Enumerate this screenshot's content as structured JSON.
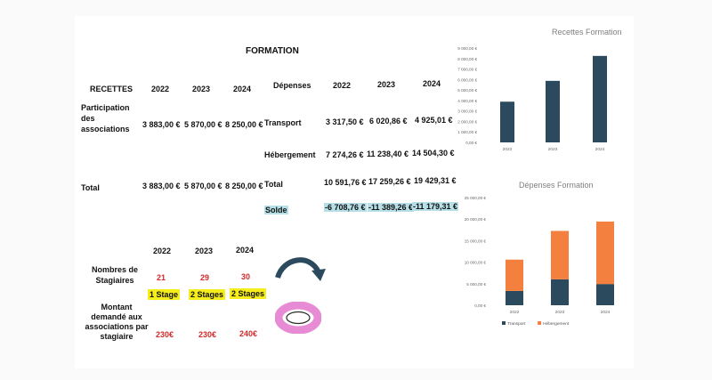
{
  "formation_title": "FORMATION",
  "recettes": {
    "header": "RECETTES",
    "years": [
      "2022",
      "2023",
      "2024"
    ],
    "participation_label": "Participation des associations",
    "participation_values": [
      "3 883,00 €",
      "5 870,00 €",
      "8 250,00 €"
    ],
    "total_label": "Total",
    "total_values": [
      "3 883,00 €",
      "5 870,00 €",
      "8 250,00 €"
    ]
  },
  "depenses": {
    "header": "Dépenses",
    "years": [
      "2022",
      "2023",
      "2024"
    ],
    "transport_label": "Transport",
    "transport_values": [
      "3 317,50 €",
      "6 020,86 €",
      "4 925,01 €"
    ],
    "hebergement_label": "Hébergement",
    "hebergement_values": [
      "7 274,26 €",
      "11 238,40 €",
      "14 504,30 €"
    ],
    "total_label": "Total",
    "total_values": [
      "10 591,76 €",
      "17 259,26 €",
      "19 429,31 €"
    ],
    "solde_label": "Solde",
    "solde_values": [
      "-6 708,76 €",
      "-11 389,26 €",
      "-11 179,31 €"
    ]
  },
  "stagiaires": {
    "years": [
      "2022",
      "2023",
      "2024"
    ],
    "nombres_label": "Nombres de Stagiaires",
    "nombres_values": [
      "21",
      "29",
      "30"
    ],
    "stages_values": [
      "1 Stage",
      "2 Stages",
      "2 Stages"
    ],
    "montant_label": "Montant demandé aux associations par stagiaire",
    "montant_values": [
      "230€",
      "230€",
      "240€"
    ]
  },
  "colors": {
    "recettes_bar": "#2c4a5e",
    "transport": "#2c4a5e",
    "hebergement": "#f4803f",
    "highlight_blue": "#b6dfe8",
    "highlight_yellow": "#f6ee1c",
    "red_text": "#d22a2a",
    "arrow": "#2c4a5e",
    "ring": "#e78bd4"
  },
  "icons": [
    "curved-arrow-icon",
    "pink-ring-icon"
  ],
  "chart_data": [
    {
      "type": "bar",
      "title": "Recettes Formation",
      "categories": [
        "2022",
        "2023",
        "2024"
      ],
      "values": [
        3883.0,
        5870.0,
        8250.0
      ],
      "ylim": [
        0,
        9000
      ],
      "yticks": [
        "0,00 €",
        "1 000,00 €",
        "2 000,00 €",
        "3 000,00 €",
        "4 000,00 €",
        "5 000,00 €",
        "6 000,00 €",
        "7 000,00 €",
        "8 000,00 €",
        "9 000,00 €"
      ],
      "legend": "none",
      "grid": false
    },
    {
      "type": "bar",
      "stacked": true,
      "title": "Dépenses Formation",
      "categories": [
        "2022",
        "2023",
        "2024"
      ],
      "series": [
        {
          "name": "Transport",
          "values": [
            3317.5,
            6020.86,
            4925.01
          ]
        },
        {
          "name": "Hébergement",
          "values": [
            7274.26,
            11238.4,
            14504.3
          ]
        }
      ],
      "ylim": [
        0,
        25000
      ],
      "yticks": [
        "0,00 €",
        "5 000,00 €",
        "10 000,00 €",
        "15 000,00 €",
        "20 000,00 €",
        "25 000,00 €"
      ],
      "legend": "bottom-left",
      "grid": false
    }
  ]
}
